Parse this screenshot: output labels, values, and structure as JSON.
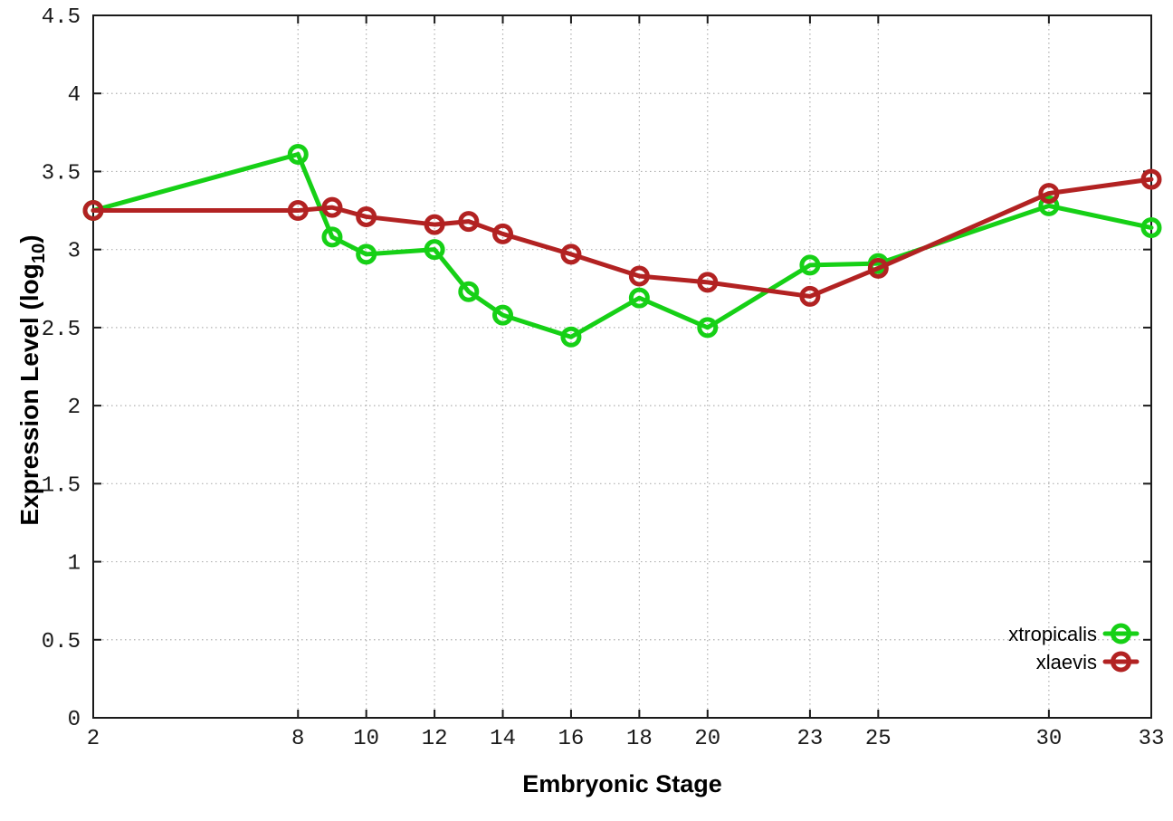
{
  "chart_data": {
    "type": "line",
    "title": "",
    "xlabel": "Embryonic Stage",
    "ylabel": {
      "main": "Expression Level (log",
      "sub": "10",
      "end": ")"
    },
    "x": [
      2,
      8,
      9,
      10,
      12,
      13,
      14,
      16,
      18,
      20,
      23,
      25,
      30,
      33
    ],
    "series": [
      {
        "name": "xtropicalis",
        "color": "#16D016",
        "values": [
          3.25,
          3.61,
          3.08,
          2.97,
          3.0,
          2.73,
          2.58,
          2.44,
          2.69,
          2.5,
          2.9,
          2.91,
          3.28,
          3.14
        ]
      },
      {
        "name": "xlaevis",
        "color": "#B22222",
        "values": [
          3.25,
          3.25,
          3.27,
          3.21,
          3.16,
          3.18,
          3.1,
          2.97,
          2.83,
          2.79,
          2.7,
          2.88,
          3.36,
          3.45
        ]
      }
    ],
    "xlim": [
      2,
      33
    ],
    "ylim": [
      0,
      4.5
    ],
    "xticks": {
      "values": [
        2,
        8,
        10,
        12,
        14,
        16,
        18,
        20,
        23,
        25,
        30,
        33
      ],
      "labels": [
        "2",
        "8",
        "10",
        "12",
        "14",
        "16",
        "18",
        "20",
        "23",
        "25",
        "30",
        "33"
      ]
    },
    "yticks": {
      "values": [
        0,
        0.5,
        1,
        1.5,
        2,
        2.5,
        3,
        3.5,
        4,
        4.5
      ],
      "labels": [
        "0",
        "0.5",
        "1",
        "1.5",
        "2",
        "2.5",
        "3",
        "3.5",
        "4",
        "4.5"
      ]
    },
    "grid": "dotted",
    "legend_position": "inside-bottom-right",
    "marker": "open-circle"
  },
  "colors": {
    "background": "#ffffff",
    "axis": "#1a1a1a",
    "grid": "#b0b0b0",
    "text": "#000000",
    "series_green": "#16D016",
    "series_red": "#B22222"
  }
}
